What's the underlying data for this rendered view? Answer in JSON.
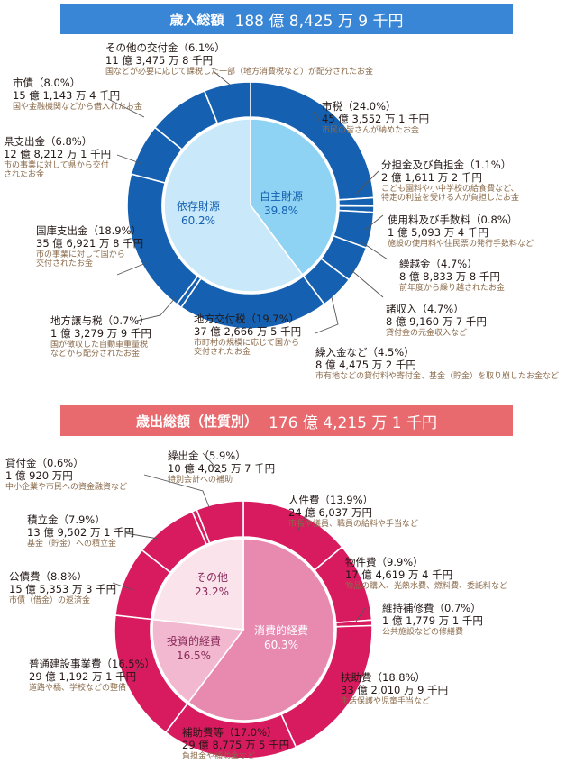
{
  "revenue": {
    "banner_label": "歳入総額",
    "banner_amount": "188 億 8,425 万 9 千円",
    "colors": {
      "banner": "#3a86d6",
      "outer": "#1560b0",
      "inner_left": "#c9e9fb",
      "inner_right": "#8fd3f4"
    },
    "inner": [
      {
        "name": "依存財源",
        "pct": "60.2%"
      },
      {
        "name": "自主財源",
        "pct": "39.8%"
      }
    ],
    "items": [
      {
        "name": "市税（24.0%）",
        "amount": "45 億 3,552 万 1 千円",
        "desc": "市民の皆さんが納めたお金"
      },
      {
        "name": "分担金及び負担金（1.1%）",
        "amount": "2 億 1,611 万 2 千円",
        "desc": "こども園料や小中学校の給食費など、",
        "desc2": "特定の利益を受ける人が負担したお金"
      },
      {
        "name": "使用料及び手数料（0.8%）",
        "amount": "1 億 5,093 万 4 千円",
        "desc": "施設の使用料や住民票の発行手数料など"
      },
      {
        "name": "繰越金（4.7%）",
        "amount": "8 億 8,833 万 8 千円",
        "desc": "前年度から繰り越されたお金"
      },
      {
        "name": "諸収入（4.7%）",
        "amount": "8 億 9,160 万 7 千円",
        "desc": "貸付金の元金収入など"
      },
      {
        "name": "繰入金など（4.5%）",
        "amount": "8 億 4,475 万 2 千円",
        "desc": "市有地などの貸付料や寄付金、基金（貯金）を取り崩したお金など"
      },
      {
        "name": "地方交付税（19.7%）",
        "amount": "37 億 2,666 万 5 千円",
        "desc": "市町村の規模に応じて国から",
        "desc2": "交付されたお金"
      },
      {
        "name": "地方譲与税（0.7%）",
        "amount": "1 億 3,279 万 9 千円",
        "desc": "国が徴収した自動車重量税",
        "desc2": "などから配分されたお金"
      },
      {
        "name": "国庫支出金（18.9%）",
        "amount": "35 億 6,921 万 8 千円",
        "desc": "市の事業に対して国から",
        "desc2": "交付されたお金"
      },
      {
        "name": "県支出金（6.8%）",
        "amount": "12 億 8,212 万 1 千円",
        "desc": "市の事業に対して県から交付",
        "desc2": "されたお金"
      },
      {
        "name": "市債（8.0%）",
        "amount": "15 億 1,143 万 4 千円",
        "desc": "国や金融機関などから借入れたお金"
      },
      {
        "name": "その他の交付金（6.1%）",
        "amount": "11 億 3,475 万 8 千円",
        "desc": "国などが必要に応じて課税した一部（地方消費税など）が配分されたお金"
      }
    ]
  },
  "expenditure": {
    "banner_label": "歳出総額（性質別）",
    "banner_amount": "176 億 4,215 万 1 千円",
    "colors": {
      "banner": "#e8696e",
      "outer": "#d81b5e",
      "inner_consume": "#e889b0",
      "inner_invest": "#f2b8cf",
      "inner_other": "#fbe3ec"
    },
    "inner": [
      {
        "name": "消費的経費",
        "pct": "60.3%"
      },
      {
        "name": "投資的経費",
        "pct": "16.5%"
      },
      {
        "name": "その他",
        "pct": "23.2%"
      }
    ],
    "items": [
      {
        "name": "人件費（13.9%）",
        "amount": "24 億 6,037 万円",
        "desc": "市長や議員、職員の給料や手当など"
      },
      {
        "name": "物件費（9.9%）",
        "amount": "17 億 4,619 万 4 千円",
        "desc": "物品の購入、光熱水費、燃料費、委託料など"
      },
      {
        "name": "維持補修費（0.7%）",
        "amount": "1 億 1,779 万 1 千円",
        "desc": "公共施設などの修繕費"
      },
      {
        "name": "扶助費（18.8%）",
        "amount": "33 億 2,010 万 9 千円",
        "desc": "生活保護や児童手当など"
      },
      {
        "name": "補助費等（17.0%）",
        "amount": "29 億 8,775 万 5 千円",
        "desc": "負担金や補助金など"
      },
      {
        "name": "普通建設事業費（16.5%）",
        "amount": "29 億 1,192 万 1 千円",
        "desc": "道路や橋、学校などの整備"
      },
      {
        "name": "公債費（8.8%）",
        "amount": "15 億 5,353 万 3 千円",
        "desc": "市債（借金）の返済金"
      },
      {
        "name": "積立金（7.9%）",
        "amount": "13 億 9,502 万 1 千円",
        "desc": "基金（貯金）への積立金"
      },
      {
        "name": "貸付金（0.6%）",
        "amount": "1 億 920 万円",
        "desc": "中小企業や市民への資金融資など"
      },
      {
        "name": "繰出金（5.9%）",
        "amount": "10 億 4,025 万 7 千円",
        "desc": "特別会計への補助"
      }
    ]
  },
  "chart_data": [
    {
      "type": "pie",
      "title": "歳入総額 188 億 8,425 万 9 千円",
      "categories": [
        "市税",
        "分担金及び負担金",
        "使用料及び手数料",
        "繰越金",
        "諸収入",
        "繰入金など",
        "地方交付税",
        "地方譲与税",
        "国庫支出金",
        "県支出金",
        "市債",
        "その他の交付金"
      ],
      "values": [
        24.0,
        1.1,
        0.8,
        4.7,
        4.7,
        4.5,
        19.7,
        0.7,
        18.9,
        6.8,
        8.0,
        6.1
      ],
      "inner": {
        "categories": [
          "自主財源",
          "依存財源"
        ],
        "values": [
          39.8,
          60.2
        ]
      }
    },
    {
      "type": "pie",
      "title": "歳出総額（性質別） 176 億 4,215 万 1 千円",
      "categories": [
        "人件費",
        "物件費",
        "維持補修費",
        "扶助費",
        "補助費等",
        "普通建設事業費",
        "公債費",
        "積立金",
        "貸付金",
        "繰出金"
      ],
      "values": [
        13.9,
        9.9,
        0.7,
        18.8,
        17.0,
        16.5,
        8.8,
        7.9,
        0.6,
        5.9
      ],
      "inner": {
        "categories": [
          "消費的経費",
          "投資的経費",
          "その他"
        ],
        "values": [
          60.3,
          16.5,
          23.2
        ]
      }
    }
  ]
}
